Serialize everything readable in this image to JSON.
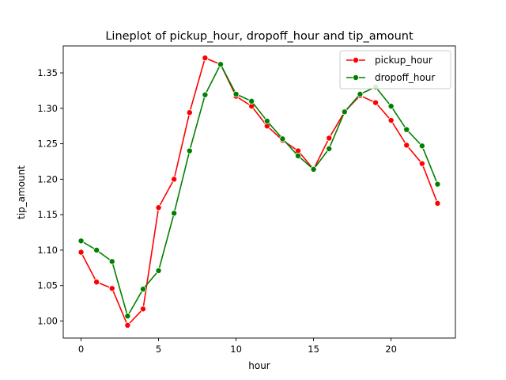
{
  "chart_data": {
    "type": "line",
    "title": "Lineplot of pickup_hour, dropoff_hour and tip_amount",
    "xlabel": "hour",
    "ylabel": "tip_amount",
    "xlim": [
      -1.15,
      24.15
    ],
    "ylim": [
      0.976,
      1.388
    ],
    "xticks": [
      0,
      5,
      10,
      15,
      20
    ],
    "xtick_labels": [
      "0",
      "5",
      "10",
      "15",
      "20"
    ],
    "yticks": [
      1.0,
      1.05,
      1.1,
      1.15,
      1.2,
      1.25,
      1.3,
      1.35
    ],
    "ytick_labels": [
      "1.00",
      "1.05",
      "1.10",
      "1.15",
      "1.20",
      "1.25",
      "1.30",
      "1.35"
    ],
    "grid": false,
    "legend_position": "top-right",
    "x": [
      0,
      1,
      2,
      3,
      4,
      5,
      6,
      7,
      8,
      9,
      10,
      11,
      12,
      13,
      14,
      15,
      16,
      17,
      18,
      19,
      20,
      21,
      22,
      23
    ],
    "series": [
      {
        "name": "pickup_hour",
        "color": "#ff0000",
        "values": [
          1.097,
          1.055,
          1.046,
          0.994,
          1.017,
          1.16,
          1.2,
          1.294,
          1.371,
          1.362,
          1.317,
          1.303,
          1.275,
          1.255,
          1.24,
          1.214,
          1.258,
          1.295,
          1.318,
          1.308,
          1.283,
          1.248,
          1.222,
          1.166
        ]
      },
      {
        "name": "dropoff_hour",
        "color": "#008000",
        "values": [
          1.113,
          1.1,
          1.084,
          1.007,
          1.045,
          1.071,
          1.152,
          1.24,
          1.319,
          1.362,
          1.32,
          1.31,
          1.282,
          1.257,
          1.233,
          1.214,
          1.243,
          1.295,
          1.32,
          1.33,
          1.303,
          1.27,
          1.247,
          1.193
        ]
      }
    ]
  }
}
